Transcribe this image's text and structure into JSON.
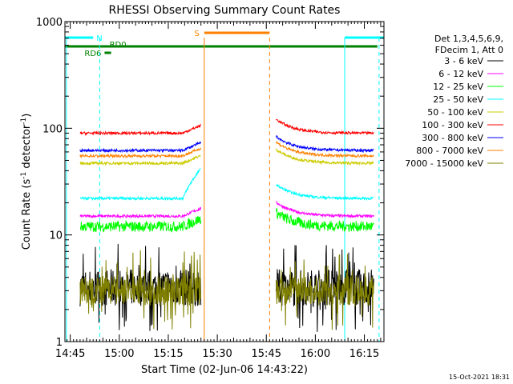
{
  "chart_data": {
    "type": "line",
    "title": "RHESSI Observing Summary Count Rates",
    "xlabel": "Start Time (02-Jun-06 14:43:22)",
    "ylabel": "Count Rate (s",
    "ylabel_sup": "-1",
    "ylabel_mid": " detector",
    "ylabel_end": ")",
    "yscale": "log",
    "ylim": [
      1,
      1000
    ],
    "y_ticks": [
      {
        "v": 1,
        "label": "1"
      },
      {
        "v": 10,
        "label": "10"
      },
      {
        "v": 100,
        "label": "100"
      },
      {
        "v": 1000,
        "label": "1000"
      }
    ],
    "xlim": [
      "14:43:22",
      "16:21:00"
    ],
    "x_ticks": [
      "14:45",
      "15:00",
      "15:15",
      "15:30",
      "15:45",
      "16:00",
      "16:15"
    ],
    "timestamp": "15-Oct-2021 18:31",
    "legend_placement": "right",
    "legend_header": [
      "Det 1,3,4,5,6,9,",
      "FDecim 1, Att 0"
    ],
    "series": [
      {
        "name": "3 - 6 keV",
        "color": "#000000",
        "level": 3.2
      },
      {
        "name": "6 - 12 keV",
        "color": "#ff00ff",
        "level": 15
      },
      {
        "name": "12 - 25 keV",
        "color": "#00ff00",
        "level": 12
      },
      {
        "name": "25 - 50 keV",
        "color": "#00ffff",
        "level": 22
      },
      {
        "name": "50 - 100 keV",
        "color": "#cccc00",
        "level": 47
      },
      {
        "name": "100 - 300 keV",
        "color": "#ff0000",
        "level": 90
      },
      {
        "name": "300 - 800 keV",
        "color": "#0000ff",
        "level": 62
      },
      {
        "name": "800 - 7000 keV",
        "color": "#ff8000",
        "level": 55
      },
      {
        "name": "7000 - 15000 keV",
        "color": "#808000",
        "level": 3.0
      }
    ],
    "flags": [
      {
        "label": "N",
        "color": "#00ffff"
      },
      {
        "label": "RD0",
        "color": "#008000"
      },
      {
        "label": "RD6",
        "color": "#008000"
      },
      {
        "label": "S",
        "color": "#ff8000"
      }
    ],
    "night": [
      [
        "14:43:22",
        "14:54:00"
      ],
      [
        "16:09:00",
        "16:21:00"
      ]
    ],
    "saa": [
      "15:26:00",
      "15:46:00"
    ],
    "data_intervals": [
      [
        "14:48:00",
        "15:25:00"
      ],
      [
        "15:48:00",
        "16:18:00"
      ]
    ]
  }
}
